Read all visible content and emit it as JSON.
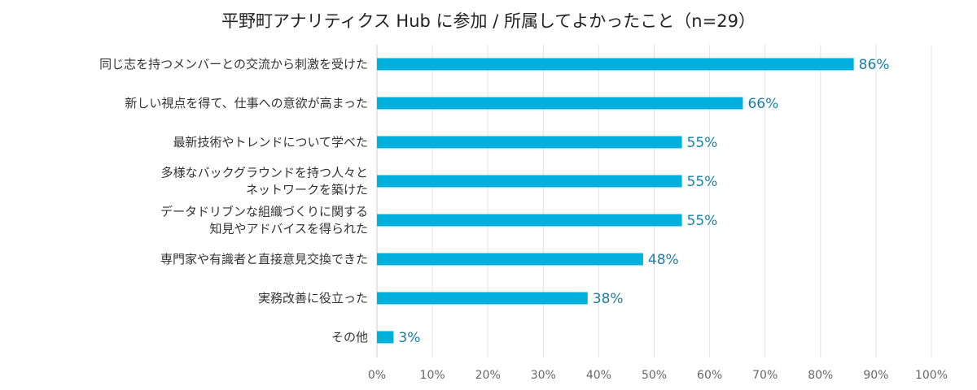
{
  "chart_data": {
    "type": "bar",
    "orientation": "horizontal",
    "title": "平野町アナリティクス Hub に参加 / 所属してよかったこと（n=29）",
    "categories": [
      "同じ志を持つメンバーとの交流から刺激を受けた",
      "新しい視点を得て、仕事への意欲が高まった",
      "最新技術やトレンドについて学べた",
      "多様なバックグラウンドを持つ人々と\nネットワークを築けた",
      "データドリブンな組織づくりに関する\n知見やアドバイスを得られた",
      "専門家や有識者と直接意見交換できた",
      "実務改善に役立った",
      "その他"
    ],
    "values": [
      86,
      66,
      55,
      55,
      55,
      48,
      38,
      3
    ],
    "data_labels": [
      "86%",
      "66%",
      "55%",
      "55%",
      "55%",
      "48%",
      "38%",
      "3%"
    ],
    "xlim": [
      0,
      100
    ],
    "x_ticks": [
      "0%",
      "10%",
      "20%",
      "30%",
      "40%",
      "50%",
      "60%",
      "70%",
      "80%",
      "90%",
      "100%"
    ],
    "grid": "vertical",
    "legend": "none",
    "colors": {
      "bar": "#00b0dc",
      "data_label": "#1a7fa8",
      "grid": "#e3e3e3"
    }
  }
}
